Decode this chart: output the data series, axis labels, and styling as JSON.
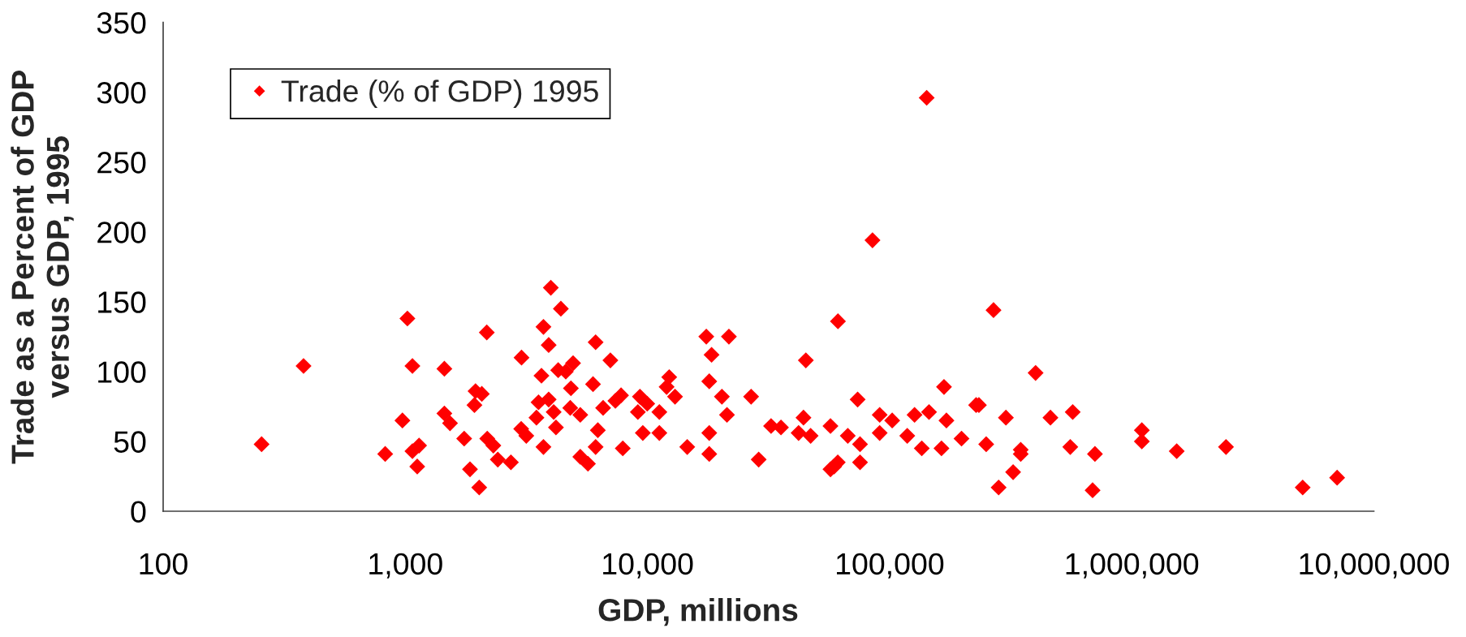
{
  "chart_data": {
    "type": "scatter",
    "xlabel": "GDP, millions",
    "ylabel": "Trade as a Percent of GDP\nversus GDP, 1995",
    "log": "x",
    "xlim": [
      100,
      10000000
    ],
    "xticks": [
      100,
      {
        "value": 1000,
        "label": "1,000"
      },
      {
        "value": 10000,
        "label": "10,000"
      },
      {
        "value": 100000,
        "label": "100,000"
      },
      {
        "value": 1000000,
        "label": "1,000,000"
      },
      {
        "value": 10000000,
        "label": "10,000,000"
      }
    ],
    "ylim": [
      0,
      350
    ],
    "yticks": [
      0,
      50,
      100,
      150,
      200,
      250,
      300,
      350
    ],
    "grid": false,
    "legend": "top left",
    "marker": "diamond",
    "series": [
      {
        "name": "Trade (% of GDP) 1995",
        "color": "#ff0000",
        "x": [
          255,
          380,
          826,
          973,
          1020,
          1070,
          1070,
          1120,
          1140,
          1450,
          1450,
          1530,
          1750,
          1850,
          2020,
          2170,
          1950,
          2070,
          1930,
          2180,
          2310,
          2410,
          2730,
          3020,
          3010,
          3160,
          3480,
          3650,
          3550,
          3910,
          3720,
          3720,
          3910,
          3990,
          4390,
          4100,
          4190,
          4280,
          4600,
          4930,
          4830,
          4800,
          5280,
          5280,
          5680,
          5960,
          6110,
          6240,
          6110,
          6560,
          7030,
          7370,
          7780,
          7910,
          9130,
          9310,
          9980,
          9570,
          11200,
          11200,
          12300,
          12000,
          13000,
          14600,
          17500,
          18400,
          18000,
          18000,
          18000,
          21700,
          20300,
          21300,
          26800,
          28800,
          32400,
          35600,
          42100,
          44100,
          45100,
          47200,
          57000,
          57000,
          59000,
          61100,
          61200,
          67200,
          73800,
          75500,
          75500,
          85000,
          91000,
          91000,
          102500,
          118300,
          126800,
          142300,
          145500,
          135800,
          163800,
          167800,
          171700,
          198200,
          227700,
          233800,
          250600,
          268700,
          282100,
          302300,
          323700,
          348000,
          348000,
          400900,
          461600,
          570500,
          557500,
          704900,
          689300,
          1101000,
          1101000,
          1534000,
          2451000,
          5082000,
          7051000
        ],
        "values": [
          48,
          104,
          41,
          65,
          138,
          104,
          43,
          32,
          47,
          102,
          70,
          63,
          52,
          30,
          17,
          128,
          86,
          84,
          76,
          52,
          47,
          37,
          35,
          110,
          59,
          54,
          67,
          97,
          78,
          80,
          46,
          132,
          119,
          160,
          145,
          71,
          60,
          101,
          100,
          106,
          88,
          74,
          69,
          39,
          34,
          91,
          121,
          58,
          46,
          74,
          108,
          79,
          83,
          45,
          71,
          82,
          77,
          56,
          71,
          56,
          96,
          89,
          82,
          46,
          125,
          112,
          93,
          56,
          41,
          125,
          82,
          69,
          82,
          37,
          61,
          60,
          56,
          67,
          108,
          54,
          61,
          30,
          32,
          35,
          136,
          54,
          80,
          48,
          35,
          194,
          69,
          56,
          65,
          54,
          69,
          296,
          71,
          45,
          45,
          89,
          65,
          52,
          76,
          76,
          48,
          144,
          17,
          67,
          28,
          44,
          41,
          99,
          67,
          71,
          46,
          41,
          15,
          58,
          50,
          43,
          46,
          17,
          24
        ]
      }
    ]
  }
}
